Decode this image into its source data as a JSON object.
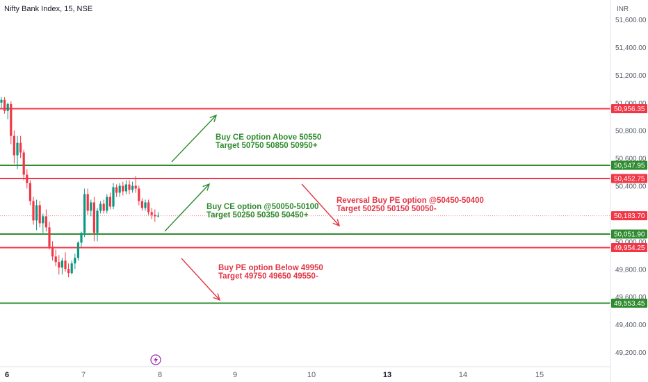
{
  "header": {
    "title": "Nifty Bank Index, 15, NSE",
    "currency": "INR"
  },
  "colors": {
    "up": "#089981",
    "down": "#f23645",
    "resistance": "#f23645",
    "support": "#2e8b2e",
    "ce_annotation": "#2e8b2e",
    "pe_annotation": "#e23445",
    "grid": "#f0f3fa",
    "axis_text": "#555b66"
  },
  "chart_data": {
    "type": "candlestick",
    "title": "Nifty Bank Index, 15, NSE",
    "x_ticks": [
      "6",
      "7",
      "8",
      "9",
      "10",
      "13",
      "14",
      "15"
    ],
    "y_ticks": [
      "49,200.00",
      "49,400.00",
      "49,600.00",
      "49,800.00",
      "50,000.00",
      "50,200.00",
      "50,400.00",
      "50,600.00",
      "50,800.00",
      "51,000.00",
      "51,200.00",
      "51,400.00",
      "51,600.00"
    ],
    "ylim": [
      49150,
      51690
    ],
    "grid": false,
    "levels": [
      {
        "label": "50,956.35",
        "value": 50956.35,
        "kind": "resistance"
      },
      {
        "label": "50,547.95",
        "value": 50547.95,
        "kind": "support"
      },
      {
        "label": "50,452.75",
        "value": 50452.75,
        "kind": "resistance"
      },
      {
        "label": "50,051.90",
        "value": 50051.9,
        "kind": "support"
      },
      {
        "label": "49,954.25",
        "value": 49954.25,
        "kind": "resistance"
      },
      {
        "label": "49,553.45",
        "value": 49553.45,
        "kind": "support"
      }
    ],
    "last_price": {
      "label": "50,183.70",
      "value": 50183.7
    },
    "candles": [
      [
        51000,
        51040,
        50960,
        51020
      ],
      [
        51020,
        51040,
        50920,
        50940
      ],
      [
        50940,
        51000,
        50880,
        50990
      ],
      [
        50990,
        51010,
        50700,
        50760
      ],
      [
        50760,
        50800,
        50560,
        50620
      ],
      [
        50620,
        50760,
        50520,
        50710
      ],
      [
        50710,
        50760,
        50600,
        50640
      ],
      [
        50640,
        50660,
        50440,
        50480
      ],
      [
        50480,
        50520,
        50380,
        50420
      ],
      [
        50420,
        50440,
        50260,
        50290
      ],
      [
        50290,
        50320,
        50120,
        50150
      ],
      [
        50150,
        50300,
        50080,
        50260
      ],
      [
        50260,
        50290,
        50100,
        50130
      ],
      [
        50130,
        50200,
        50060,
        50180
      ],
      [
        50180,
        50230,
        50070,
        50100
      ],
      [
        50100,
        50140,
        49940,
        49960
      ],
      [
        49960,
        50000,
        49860,
        49890
      ],
      [
        49890,
        49940,
        49820,
        49850
      ],
      [
        49850,
        49900,
        49760,
        49810
      ],
      [
        49810,
        49880,
        49760,
        49860
      ],
      [
        49860,
        49920,
        49780,
        49800
      ],
      [
        49800,
        49840,
        49740,
        49770
      ],
      [
        49770,
        49860,
        49760,
        49840
      ],
      [
        49840,
        49910,
        49800,
        49880
      ],
      [
        49880,
        50000,
        49860,
        49990
      ],
      [
        49990,
        50070,
        49960,
        50060
      ],
      [
        50060,
        50380,
        50030,
        50340
      ],
      [
        50340,
        50380,
        50190,
        50220
      ],
      [
        50220,
        50300,
        50180,
        50280
      ],
      [
        50280,
        50320,
        50000,
        50060
      ],
      [
        50060,
        50240,
        50000,
        50220
      ],
      [
        50220,
        50290,
        50200,
        50270
      ],
      [
        50270,
        50300,
        50200,
        50220
      ],
      [
        50220,
        50340,
        50200,
        50320
      ],
      [
        50320,
        50350,
        50230,
        50250
      ],
      [
        50250,
        50420,
        50230,
        50390
      ],
      [
        50390,
        50410,
        50320,
        50350
      ],
      [
        50350,
        50420,
        50320,
        50400
      ],
      [
        50400,
        50430,
        50330,
        50360
      ],
      [
        50360,
        50440,
        50340,
        50410
      ],
      [
        50410,
        50440,
        50340,
        50370
      ],
      [
        50370,
        50430,
        50350,
        50400
      ],
      [
        50400,
        50470,
        50350,
        50380
      ],
      [
        50380,
        50400,
        50260,
        50290
      ],
      [
        50290,
        50310,
        50220,
        50240
      ],
      [
        50240,
        50300,
        50220,
        50280
      ],
      [
        50280,
        50300,
        50190,
        50210
      ],
      [
        50210,
        50240,
        50160,
        50190
      ],
      [
        50190,
        50230,
        50140,
        50180
      ],
      [
        50180,
        50210,
        50170,
        50184
      ]
    ],
    "annotations": [
      {
        "lines": [
          "Buy CE option Above 50550",
          "Target 50750 50850 50950+"
        ],
        "color": "ce"
      },
      {
        "lines": [
          "Buy CE option @50050-50100",
          "Target 50250 50350 50450+"
        ],
        "color": "ce"
      },
      {
        "lines": [
          "Reversal Buy PE option @50450-50400",
          "Target 50250 50150 50050-"
        ],
        "color": "pe"
      },
      {
        "lines": [
          "Buy PE option Below 49950",
          "Target 49750 49650 49550-"
        ],
        "color": "pe"
      }
    ]
  }
}
